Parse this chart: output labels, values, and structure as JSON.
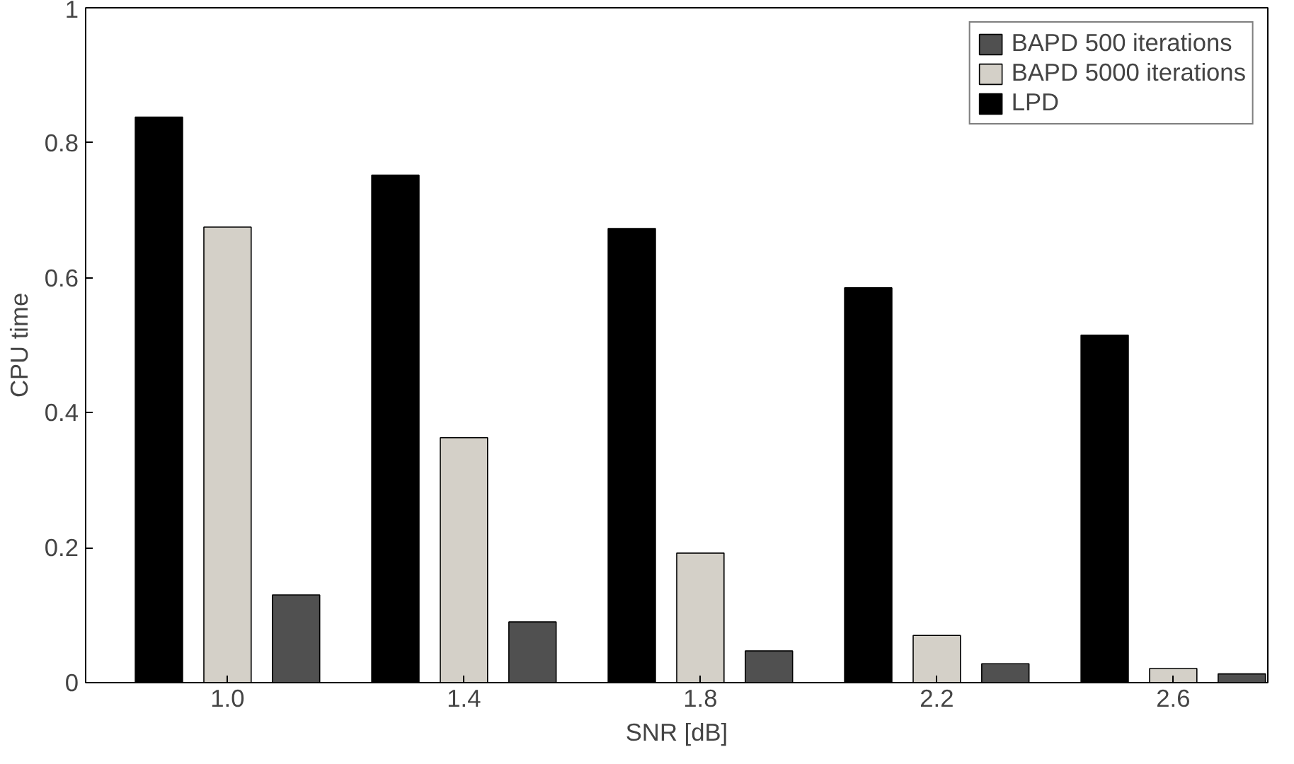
{
  "chart_data": {
    "type": "bar",
    "xlabel": "SNR [dB]",
    "ylabel": "CPU time",
    "categories": [
      "1.0",
      "1.4",
      "1.8",
      "2.2",
      "2.6"
    ],
    "series": [
      {
        "name": "BAPD 500 iterations",
        "color": "#505050",
        "values": [
          0.13,
          0.09,
          0.047,
          0.028,
          0.013
        ]
      },
      {
        "name": "BAPD 5000 iterations",
        "color": "#d4d0c8",
        "values": [
          0.675,
          0.363,
          0.192,
          0.07,
          0.021
        ]
      },
      {
        "name": "LPD",
        "color": "#000000",
        "values": [
          0.838,
          0.752,
          0.673,
          0.585,
          0.515
        ]
      }
    ],
    "ylim": [
      0,
      1
    ],
    "yticks": [
      0,
      0.2,
      0.4,
      0.6,
      0.8,
      1
    ],
    "grid": false,
    "legend": "top right"
  }
}
